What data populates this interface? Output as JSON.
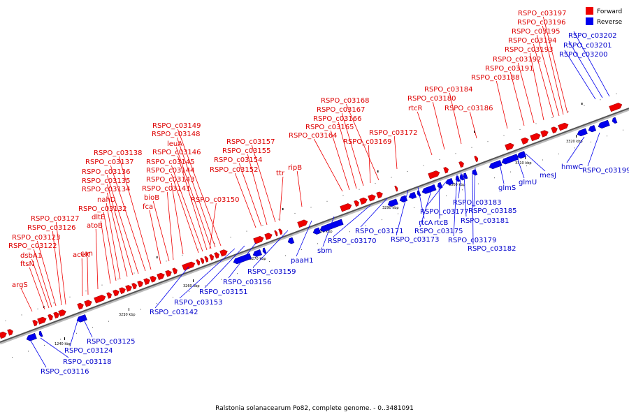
{
  "caption": "Ralstonia solanacearum Po82, complete genome. - 0..3481091",
  "legend": {
    "forward": {
      "label": "Forward",
      "color": "#ee0000"
    },
    "reverse": {
      "label": "Reverse",
      "color": "#0000ee"
    }
  },
  "ticks": [
    "1240 kbp",
    "3250 kbp",
    "3260 kbp",
    "3270 kbp",
    "3280 kbp",
    "3290 kbp",
    "3300 kbp",
    "3310 kbp",
    "3320 kbp"
  ],
  "forward_labels": [
    "argS",
    "ftsN",
    "dsbA1",
    "RSPO_c03122",
    "RSPO_c03123",
    "RSPO_c03126",
    "RSPO_c03127",
    "aceK",
    "can",
    "atoB",
    "dltE",
    "RSPO_c03132",
    "nahD",
    "RSPO_c03134",
    "RSPO_c03135",
    "RSPO_c03136",
    "RSPO_c03137",
    "RSPO_c03138",
    "fca",
    "bioB",
    "RSPO_c03141",
    "RSPO_c03143",
    "RSPO_c03144",
    "RSPO_c03145",
    "RSPO_c03146",
    "leuA",
    "RSPO_c03148",
    "RSPO_c03149",
    "RSPO_c03150",
    "RSPO_c03152",
    "RSPO_c03154",
    "RSPO_c03155",
    "RSPO_c03157",
    "ttr",
    "ripB",
    "RSPO_c03164",
    "RSPO_c03165",
    "RSPO_c03166",
    "RSPO_c03167",
    "RSPO_c03168",
    "RSPO_c03169",
    "RSPO_c03172",
    "rtcR",
    "RSPO_c03180",
    "RSPO_c03184",
    "RSPO_c03186",
    "RSPO_c03188",
    "RSPO_c03191",
    "RSPO_c03192",
    "RSPO_c03193",
    "RSPO_c03194",
    "RSPO_c03195",
    "RSPO_c03196",
    "RSPO_c03197"
  ],
  "reverse_labels": [
    "RSPO_c03116",
    "RSPO_c03118",
    "RSPO_c03124",
    "RSPO_c03125",
    "RSPO_c03142",
    "RSPO_c03153",
    "RSPO_c03151",
    "RSPO_c03156",
    "RSPO_c03159",
    "paaH1",
    "sbm",
    "RSPO_c03170",
    "RSPO_c03171",
    "RSPO_c03173",
    "rtcA",
    "RSPO_c03175",
    "rtcB",
    "RSPO_c03177",
    "RSPO_c03179",
    "RSPO_c03181",
    "RSPO_c03182",
    "RSPO_c03183",
    "RSPO_c03185",
    "glmS",
    "glmU",
    "mesJ",
    "hmwC",
    "RSPO_c03199",
    "RSPO_c03200",
    "RSPO_c03201",
    "RSPO_c03202"
  ]
}
